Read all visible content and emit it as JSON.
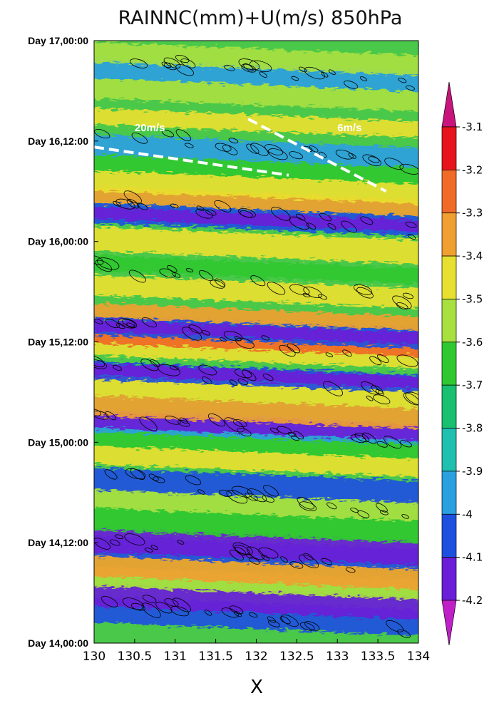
{
  "chart_data": {
    "type": "heatmap",
    "title": "RAINNC(mm)+U(m/s) 850hPa",
    "xlabel": "X",
    "ylabel": "",
    "x_ticks": [
      "130",
      "130.5",
      "131",
      "131.5",
      "132",
      "132.5",
      "133",
      "133.5",
      "134"
    ],
    "xlim": [
      130,
      134
    ],
    "y_ticks": [
      "Day 14,00:00",
      "Day 14,12:00",
      "Day 15,00:00",
      "Day 15,12:00",
      "Day 16,00:00",
      "Day 16,12:00",
      "Day 17,00:00"
    ],
    "ylim_days": [
      14.0,
      17.0
    ],
    "colorbar": {
      "ticks": [
        "-3.1",
        "-3.2",
        "-3.3",
        "-3.4",
        "-3.5",
        "-3.6",
        "-3.7",
        "-3.8",
        "-3.9",
        "-4",
        "-4.1",
        "-4.2"
      ],
      "levels": [
        -3.1,
        -3.2,
        -3.3,
        -3.4,
        -3.5,
        -3.6,
        -3.7,
        -3.8,
        -3.9,
        -4.0,
        -4.1,
        -4.2
      ],
      "colors": [
        "#c8147c",
        "#e8141c",
        "#f06a28",
        "#f0a030",
        "#e8e030",
        "#a8e040",
        "#30c830",
        "#18c070",
        "#20c0b0",
        "#2aa0e0",
        "#1e50e0",
        "#6a1ed8",
        "#c020c8"
      ],
      "extend": "both"
    },
    "bands": [
      {
        "y0": 14.07,
        "y1": 14.2,
        "level": -4.0
      },
      {
        "y0": 14.15,
        "y1": 14.26,
        "level": -4.1
      },
      {
        "y0": 14.25,
        "y1": 14.35,
        "level": -3.5
      },
      {
        "y0": 14.3,
        "y1": 14.41,
        "level": -3.3
      },
      {
        "y0": 14.4,
        "y1": 14.5,
        "level": -4.0
      },
      {
        "y0": 14.42,
        "y1": 14.54,
        "level": -4.1
      },
      {
        "y0": 14.53,
        "y1": 14.64,
        "level": -3.6
      },
      {
        "y0": 14.64,
        "y1": 14.74,
        "level": -3.5
      },
      {
        "y0": 14.73,
        "y1": 14.84,
        "level": -4.0
      },
      {
        "y0": 14.86,
        "y1": 14.95,
        "level": -3.4
      },
      {
        "y0": 14.95,
        "y1": 15.04,
        "level": -3.6
      },
      {
        "y0": 15.02,
        "y1": 15.13,
        "level": -3.9
      },
      {
        "y0": 15.04,
        "y1": 15.12,
        "level": -4.1
      },
      {
        "y0": 15.1,
        "y1": 15.2,
        "level": -3.3
      },
      {
        "y0": 15.2,
        "y1": 15.31,
        "level": -3.4
      },
      {
        "y0": 15.28,
        "y1": 15.37,
        "level": -4.0
      },
      {
        "y0": 15.3,
        "y1": 15.36,
        "level": -4.1
      },
      {
        "y0": 15.4,
        "y1": 15.5,
        "level": -3.4
      },
      {
        "y0": 15.46,
        "y1": 15.53,
        "level": -3.2
      },
      {
        "y0": 15.5,
        "y1": 15.6,
        "level": -4.0
      },
      {
        "y0": 15.52,
        "y1": 15.58,
        "level": -4.1
      },
      {
        "y0": 15.59,
        "y1": 15.66,
        "level": -3.3
      },
      {
        "y0": 15.7,
        "y1": 15.8,
        "level": -3.4
      },
      {
        "y0": 15.82,
        "y1": 15.9,
        "level": -3.6
      },
      {
        "y0": 15.92,
        "y1": 16.04,
        "level": -3.4
      },
      {
        "y0": 16.06,
        "y1": 16.16,
        "level": -4.0
      },
      {
        "y0": 16.08,
        "y1": 16.14,
        "level": -4.1
      },
      {
        "y0": 16.16,
        "y1": 16.24,
        "level": -3.3
      },
      {
        "y0": 16.22,
        "y1": 16.32,
        "level": -3.4
      },
      {
        "y0": 16.32,
        "y1": 16.4,
        "level": -3.6
      },
      {
        "y0": 16.4,
        "y1": 16.5,
        "level": -3.9
      },
      {
        "y0": 16.55,
        "y1": 16.63,
        "level": -3.4
      },
      {
        "y0": 16.68,
        "y1": 16.78,
        "level": -3.5
      },
      {
        "y0": 16.78,
        "y1": 16.88,
        "level": -3.9
      },
      {
        "y0": 16.86,
        "y1": 16.96,
        "level": -3.5
      }
    ],
    "annotations": [
      {
        "text": "20m/s",
        "x": 130.5,
        "y_day": 16.55,
        "line_x0": 130.0,
        "line_y0": 16.47,
        "line_x1": 132.4,
        "line_y1": 16.33
      },
      {
        "text": "6m/s",
        "x": 133.0,
        "y_day": 16.55,
        "line_x0": 131.9,
        "line_y0": 16.61,
        "line_x1": 133.6,
        "line_y1": 16.25
      }
    ]
  }
}
